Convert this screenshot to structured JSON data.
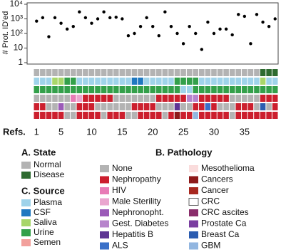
{
  "chart_data": {
    "type": "scatter",
    "ylabel": "# Prot. ID'ed",
    "yscale": "log",
    "ylim": [
      1,
      10000
    ],
    "yticks": [
      1,
      10,
      {
        "value": 100,
        "label": "10²"
      },
      {
        "value": 1000,
        "label": "10³"
      },
      {
        "value": 10000,
        "label": "10⁴"
      }
    ],
    "xlim": [
      0.5,
      40.5
    ],
    "xticks": [
      1,
      5,
      10,
      15,
      20,
      25,
      30,
      35
    ],
    "xlabel": "Refs.",
    "color": "#000000",
    "x": [
      1,
      2,
      3,
      4,
      5,
      6,
      7,
      8,
      9,
      10,
      11,
      12,
      13,
      14,
      15,
      16,
      17,
      18,
      19,
      20,
      21,
      22,
      23,
      24,
      25,
      26,
      27,
      28,
      29,
      30,
      31,
      32,
      33,
      34,
      35,
      36,
      37,
      38,
      39,
      40
    ],
    "values": [
      700,
      1200,
      60,
      1200,
      500,
      200,
      300,
      3000,
      1200,
      500,
      1000,
      3000,
      1200,
      1300,
      1000,
      70,
      100,
      300,
      1200,
      300,
      70,
      3000,
      300,
      100,
      20,
      300,
      100,
      8,
      600,
      100,
      200,
      200,
      80,
      2000,
      1500,
      20,
      2000,
      600,
      300,
      1000
    ],
    "heatmap": [
      {
        "group": "state",
        "cells": [
          0,
          0,
          0,
          0,
          0,
          0,
          0,
          0,
          0,
          0,
          0,
          0,
          0,
          0,
          0,
          0,
          0,
          0,
          0,
          0,
          0,
          0,
          0,
          0,
          0,
          0,
          0,
          0,
          0,
          0,
          0,
          0,
          0,
          0,
          0,
          0,
          0,
          1,
          1,
          1
        ]
      },
      {
        "group": "source",
        "cells": [
          0,
          0,
          0,
          2,
          2,
          3,
          3,
          0,
          0,
          0,
          0,
          0,
          0,
          0,
          0,
          0,
          1,
          1,
          0,
          0,
          0,
          0,
          0,
          3,
          3,
          3,
          3,
          0,
          0,
          0,
          0,
          0,
          0,
          0,
          0,
          0,
          0,
          2,
          0,
          0
        ]
      },
      {
        "group": "source",
        "cells": [
          3,
          3,
          3,
          3,
          3,
          3,
          3,
          3,
          3,
          3,
          3,
          3,
          3,
          3,
          3,
          3,
          3,
          3,
          3,
          3,
          3,
          3,
          3,
          3,
          0,
          0,
          3,
          3,
          3,
          3,
          3,
          3,
          3,
          3,
          3,
          3,
          3,
          3,
          3,
          3
        ]
      },
      {
        "group": "pathology",
        "cells": [
          0,
          0,
          0,
          0,
          0,
          0,
          2,
          3,
          1,
          1,
          1,
          1,
          1,
          0,
          0,
          0,
          0,
          0,
          0,
          0,
          1,
          1,
          1,
          1,
          1,
          5,
          5,
          1,
          1,
          1,
          1,
          1,
          0,
          0,
          0,
          0,
          0,
          1,
          1,
          1
        ]
      },
      {
        "group": "pathology",
        "cells": [
          1,
          1,
          0,
          0,
          4,
          0,
          0,
          1,
          1,
          1,
          0,
          0,
          0,
          0,
          0,
          0,
          1,
          1,
          1,
          1,
          0,
          0,
          0,
          6,
          0,
          0,
          1,
          1,
          7,
          1,
          0,
          0,
          0,
          1,
          1,
          1,
          0,
          14,
          0,
          1
        ]
      },
      {
        "group": "pathology",
        "cells": [
          1,
          1,
          1,
          1,
          1,
          0,
          0,
          1,
          1,
          1,
          1,
          0,
          1,
          1,
          1,
          0,
          0,
          1,
          1,
          1,
          1,
          0,
          1,
          9,
          1,
          1,
          15,
          1,
          1,
          1,
          1,
          1,
          0,
          1,
          1,
          1,
          1,
          1,
          1,
          1
        ]
      }
    ],
    "legends": [
      {
        "key": "state",
        "title": "A. State",
        "items": [
          {
            "name": "Normal",
            "color": "#b3b3b3"
          },
          {
            "name": "Disease",
            "color": "#2e6b30"
          }
        ]
      },
      {
        "key": "source",
        "title": "C. Source",
        "items": [
          {
            "name": "Plasma",
            "color": "#9fd3ea"
          },
          {
            "name": "CSF",
            "color": "#1f78c0"
          },
          {
            "name": "Saliva",
            "color": "#a8d66a"
          },
          {
            "name": "Urine",
            "color": "#33a04a"
          },
          {
            "name": "Semen",
            "color": "#f2a09c"
          }
        ]
      },
      {
        "key": "pathology",
        "title": "B. Pathology",
        "items": [
          {
            "name": "None",
            "color": "#b3b3b3"
          },
          {
            "name": "Nephropathy",
            "color": "#cc1f2e"
          },
          {
            "name": "HIV",
            "color": "#e87cb6"
          },
          {
            "name": "Male Sterility",
            "color": "#eaa6cf"
          },
          {
            "name": "Nephronopht.",
            "color": "#9b5bb8"
          },
          {
            "name": "Gest. Diabetes",
            "color": "#b784cc"
          },
          {
            "name": "Hepatitis B",
            "color": "#5e3594"
          },
          {
            "name": "ALS",
            "color": "#3a70c8"
          },
          {
            "name": "Mesothelioma",
            "color": "#fadcdc"
          },
          {
            "name": "Cancers",
            "color": "#8e1a1a"
          },
          {
            "name": "Cancer",
            "color": "#a8281f"
          },
          {
            "name": "CRC",
            "color": "#ffffff"
          },
          {
            "name": "CRC ascites",
            "color": "#8a2d6b"
          },
          {
            "name": "Prostate Ca",
            "color": "#7a3ea0"
          },
          {
            "name": "Breast Ca",
            "color": "#2b5cb0"
          },
          {
            "name": "GBM",
            "color": "#92b6e0"
          }
        ]
      }
    ]
  }
}
